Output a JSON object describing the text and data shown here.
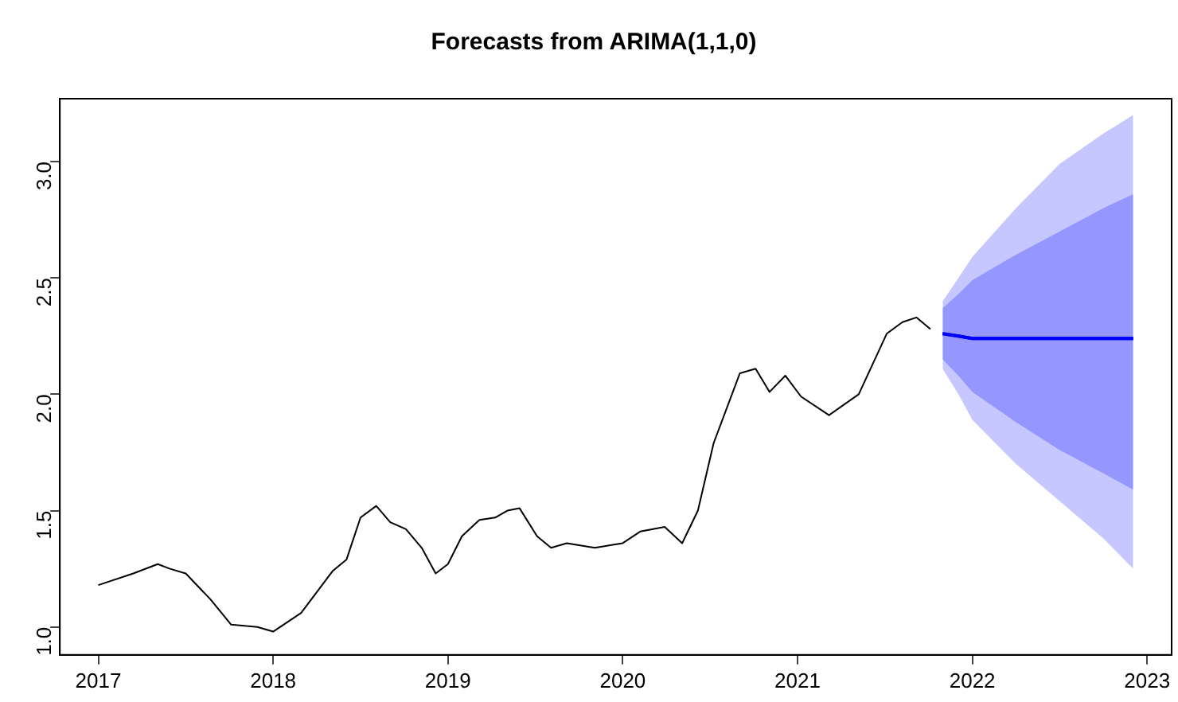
{
  "chart_data": {
    "type": "line",
    "title": "Forecasts from ARIMA(1,1,0)",
    "xlim": [
      2016.78,
      2023.14
    ],
    "ylim": [
      0.88,
      3.27
    ],
    "xticks": [
      2017,
      2018,
      2019,
      2020,
      2021,
      2022,
      2023
    ],
    "yticks": [
      {
        "value": 1,
        "label": "1.0"
      },
      {
        "value": 1.5,
        "label": "1.5"
      },
      {
        "value": 2,
        "label": "2.0"
      },
      {
        "value": 2.5,
        "label": "2.5"
      },
      {
        "value": 3,
        "label": "3.0"
      }
    ],
    "grid": false,
    "legend": false,
    "marker": "none",
    "line_style": "solid",
    "series": [
      {
        "color": "#0000ff",
        "x": [
          2021.83,
          2021.92,
          2022.0,
          2022.25,
          2022.5,
          2022.75,
          2022.92
        ],
        "values": [
          2.26,
          2.25,
          2.24,
          2.24,
          2.24,
          2.24,
          2.24
        ],
        "lower": [
          2.11,
          2.0,
          1.89,
          1.7,
          1.54,
          1.38,
          1.25
        ],
        "upper": [
          2.4,
          2.5,
          2.59,
          2.8,
          2.99,
          3.12,
          3.2
        ]
      },
      {
        "color": "#0000ff",
        "x": [
          2021.83,
          2021.92,
          2022.0,
          2022.25,
          2022.5,
          2022.75,
          2022.92
        ],
        "values": [
          2.26,
          2.25,
          2.24,
          2.24,
          2.24,
          2.24,
          2.24
        ],
        "lower": [
          2.15,
          2.08,
          2.01,
          1.88,
          1.76,
          1.66,
          1.59
        ],
        "upper": [
          2.37,
          2.43,
          2.49,
          2.6,
          2.7,
          2.8,
          2.86
        ]
      },
      {
        "color": "#000000",
        "x": [
          2017.0,
          2017.2,
          2017.34,
          2017.41,
          2017.5,
          2017.64,
          2017.76,
          2017.91,
          2018.0,
          2018.16,
          2018.25,
          2018.34,
          2018.42,
          2018.5,
          2018.59,
          2018.67,
          2018.76,
          2018.85,
          2018.93,
          2019.0,
          2019.08,
          2019.18,
          2019.27,
          2019.34,
          2019.41,
          2019.51,
          2019.59,
          2019.68,
          2019.84,
          2020.0,
          2020.1,
          2020.24,
          2020.34,
          2020.43,
          2020.52,
          2020.67,
          2020.76,
          2020.84,
          2020.93,
          2021.02,
          2021.18,
          2021.35,
          2021.51,
          2021.6,
          2021.68,
          2021.76
        ],
        "values": [
          1.18,
          1.23,
          1.27,
          1.25,
          1.23,
          1.12,
          1.01,
          1.0,
          0.98,
          1.06,
          1.15,
          1.24,
          1.29,
          1.47,
          1.52,
          1.45,
          1.42,
          1.34,
          1.23,
          1.27,
          1.39,
          1.46,
          1.47,
          1.5,
          1.51,
          1.39,
          1.34,
          1.36,
          1.34,
          1.36,
          1.41,
          1.43,
          1.36,
          1.5,
          1.79,
          2.09,
          2.11,
          2.01,
          2.08,
          1.99,
          1.91,
          2.0,
          2.26,
          2.31,
          2.33,
          2.28
        ]
      }
    ]
  }
}
